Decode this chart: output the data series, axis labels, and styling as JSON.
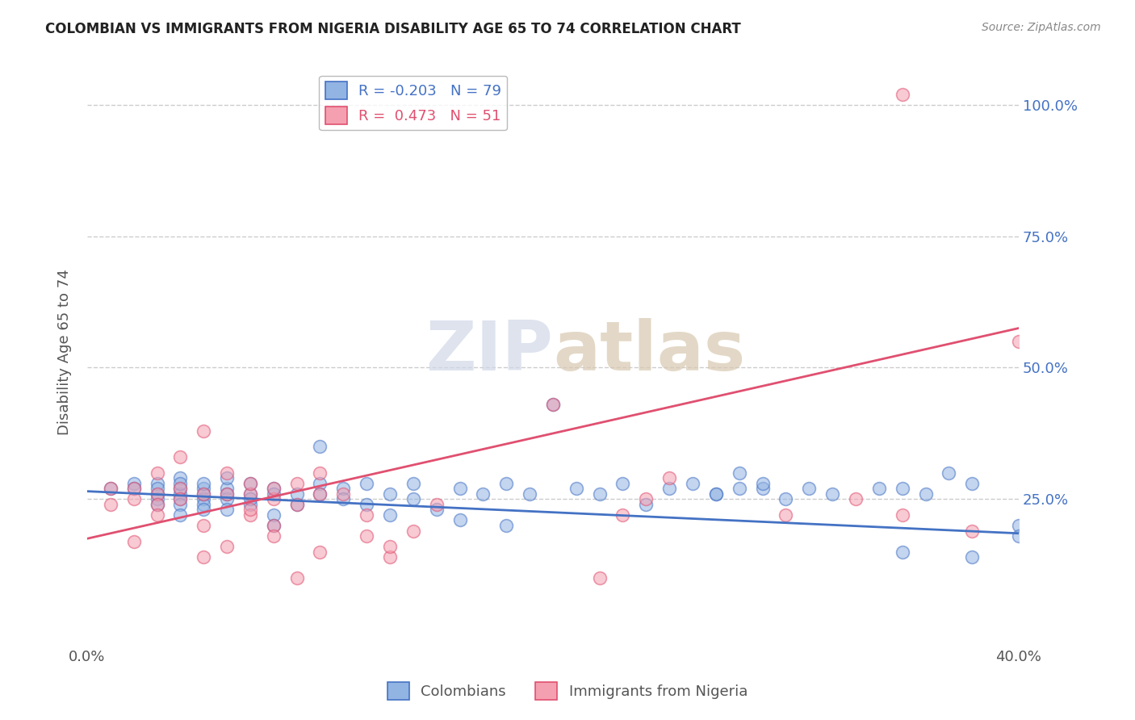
{
  "title": "COLOMBIAN VS IMMIGRANTS FROM NIGERIA DISABILITY AGE 65 TO 74 CORRELATION CHART",
  "source": "Source: ZipAtlas.com",
  "ylabel": "Disability Age 65 to 74",
  "ytick_labels": [
    "",
    "25.0%",
    "50.0%",
    "75.0%",
    "100.0%"
  ],
  "ytick_values": [
    0,
    0.25,
    0.5,
    0.75,
    1.0
  ],
  "xlim": [
    0.0,
    0.4
  ],
  "ylim": [
    -0.02,
    1.08
  ],
  "legend_blue_r": "-0.203",
  "legend_blue_n": "79",
  "legend_pink_r": "0.473",
  "legend_pink_n": "51",
  "blue_color": "#92b4e3",
  "pink_color": "#f4a0b0",
  "trendline_blue": "#4472c4",
  "trendline_pink": "#e05070",
  "watermark_zip": "ZIP",
  "watermark_atlas": "atlas",
  "blue_scatter_x": [
    0.01,
    0.02,
    0.02,
    0.03,
    0.03,
    0.03,
    0.03,
    0.03,
    0.04,
    0.04,
    0.04,
    0.04,
    0.04,
    0.04,
    0.04,
    0.05,
    0.05,
    0.05,
    0.05,
    0.05,
    0.05,
    0.06,
    0.06,
    0.06,
    0.06,
    0.06,
    0.07,
    0.07,
    0.07,
    0.07,
    0.08,
    0.08,
    0.08,
    0.08,
    0.09,
    0.09,
    0.1,
    0.1,
    0.1,
    0.11,
    0.11,
    0.12,
    0.12,
    0.13,
    0.13,
    0.14,
    0.14,
    0.15,
    0.16,
    0.16,
    0.17,
    0.18,
    0.18,
    0.19,
    0.2,
    0.21,
    0.22,
    0.23,
    0.24,
    0.25,
    0.26,
    0.27,
    0.28,
    0.29,
    0.3,
    0.31,
    0.32,
    0.34,
    0.35,
    0.36,
    0.37,
    0.38,
    0.38,
    0.4,
    0.4,
    0.27,
    0.28,
    0.29,
    0.35
  ],
  "blue_scatter_y": [
    0.27,
    0.28,
    0.27,
    0.26,
    0.25,
    0.28,
    0.24,
    0.27,
    0.29,
    0.26,
    0.27,
    0.25,
    0.28,
    0.24,
    0.22,
    0.27,
    0.25,
    0.24,
    0.23,
    0.26,
    0.28,
    0.27,
    0.25,
    0.26,
    0.29,
    0.23,
    0.26,
    0.28,
    0.24,
    0.25,
    0.27,
    0.22,
    0.26,
    0.2,
    0.24,
    0.26,
    0.35,
    0.28,
    0.26,
    0.27,
    0.25,
    0.28,
    0.24,
    0.22,
    0.26,
    0.28,
    0.25,
    0.23,
    0.27,
    0.21,
    0.26,
    0.28,
    0.2,
    0.26,
    0.43,
    0.27,
    0.26,
    0.28,
    0.24,
    0.27,
    0.28,
    0.26,
    0.3,
    0.27,
    0.25,
    0.27,
    0.26,
    0.27,
    0.15,
    0.26,
    0.3,
    0.14,
    0.28,
    0.2,
    0.18,
    0.26,
    0.27,
    0.28,
    0.27
  ],
  "pink_scatter_x": [
    0.01,
    0.01,
    0.02,
    0.02,
    0.02,
    0.03,
    0.03,
    0.03,
    0.03,
    0.04,
    0.04,
    0.04,
    0.05,
    0.05,
    0.05,
    0.06,
    0.06,
    0.07,
    0.07,
    0.07,
    0.08,
    0.08,
    0.08,
    0.09,
    0.09,
    0.1,
    0.1,
    0.11,
    0.12,
    0.12,
    0.13,
    0.13,
    0.14,
    0.15,
    0.2,
    0.22,
    0.23,
    0.24,
    0.25,
    0.3,
    0.33,
    0.35,
    0.35,
    0.38,
    0.4,
    0.05,
    0.06,
    0.07,
    0.08,
    0.09,
    0.1
  ],
  "pink_scatter_y": [
    0.27,
    0.24,
    0.27,
    0.25,
    0.17,
    0.26,
    0.24,
    0.3,
    0.22,
    0.27,
    0.33,
    0.25,
    0.26,
    0.2,
    0.38,
    0.3,
    0.26,
    0.26,
    0.28,
    0.22,
    0.25,
    0.2,
    0.27,
    0.28,
    0.24,
    0.26,
    0.3,
    0.26,
    0.22,
    0.18,
    0.14,
    0.16,
    0.19,
    0.24,
    0.43,
    0.1,
    0.22,
    0.25,
    0.29,
    0.22,
    0.25,
    1.02,
    0.22,
    0.19,
    0.55,
    0.14,
    0.16,
    0.23,
    0.18,
    0.1,
    0.15
  ],
  "blue_trend_x": [
    0.0,
    0.4
  ],
  "blue_trend_y": [
    0.265,
    0.185
  ],
  "pink_trend_x": [
    0.0,
    0.4
  ],
  "pink_trend_y": [
    0.175,
    0.575
  ],
  "background_color": "#ffffff",
  "grid_color": "#cccccc"
}
